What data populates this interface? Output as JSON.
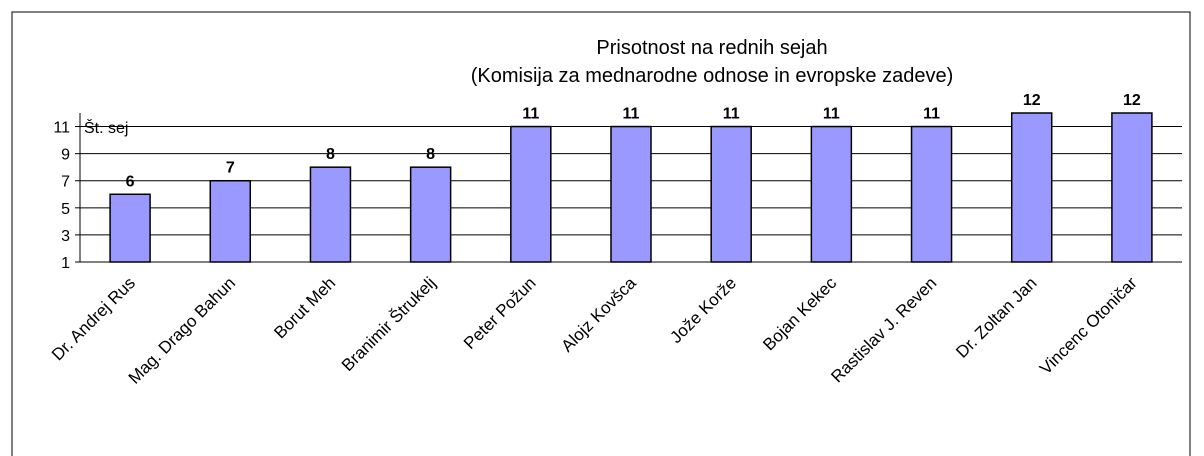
{
  "chart_data": {
    "type": "bar",
    "title": "Prisotnost na rednih sejah",
    "subtitle": "(Komisija za mednarodne odnose in evropske zadeve)",
    "y_label": "Št. sej",
    "categories": [
      "Dr. Andrej Rus",
      "Mag. Drago Bahun",
      "Borut Meh",
      "Branimir Štrukelj",
      "Peter Požun",
      "Alojz Kovšca",
      "Jože Korže",
      "Bojan Kekec",
      "Rastislav J. Reven",
      "Dr. Zoltan Jan",
      "Vincenc Otoničar"
    ],
    "values": [
      6,
      7,
      8,
      8,
      11,
      11,
      11,
      11,
      11,
      12,
      12
    ],
    "color": "#9999ff",
    "ylim": [
      1,
      12
    ],
    "yticks": [
      1,
      3,
      5,
      7,
      9,
      11
    ],
    "grid": true
  }
}
